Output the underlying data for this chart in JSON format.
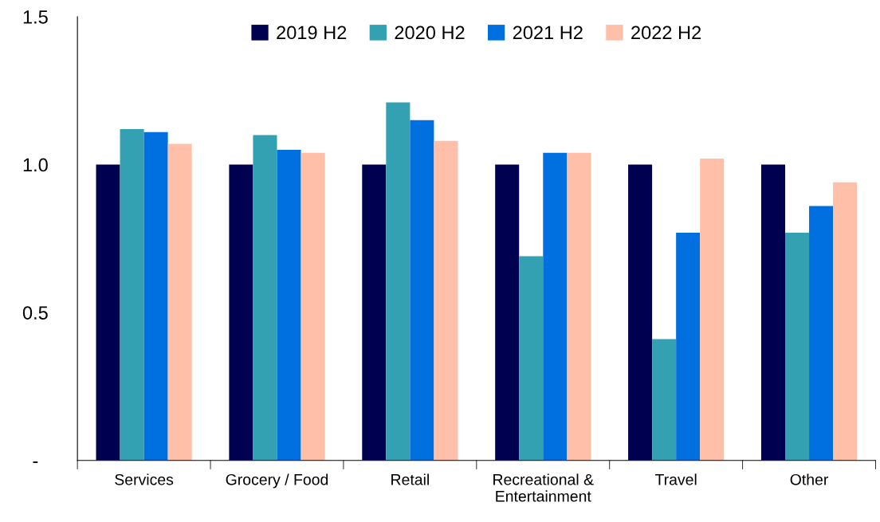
{
  "chart_data": {
    "type": "bar",
    "categories": [
      "Services",
      "Grocery / Food",
      "Retail",
      "Recreational &\nEntertainment",
      "Travel",
      "Other"
    ],
    "series": [
      {
        "name": "2019 H2",
        "color": "#000050",
        "values": [
          1.0,
          1.0,
          1.0,
          1.0,
          1.0,
          1.0
        ]
      },
      {
        "name": "2020 H2",
        "color": "#33a1b2",
        "values": [
          1.12,
          1.1,
          1.21,
          0.69,
          0.41,
          0.77
        ]
      },
      {
        "name": "2021 H2",
        "color": "#0070e0",
        "values": [
          1.11,
          1.05,
          1.15,
          1.04,
          0.77,
          0.86
        ]
      },
      {
        "name": "2022 H2",
        "color": "#ffbfa8",
        "values": [
          1.07,
          1.04,
          1.08,
          1.04,
          1.02,
          0.94
        ]
      }
    ],
    "ylim": [
      0,
      1.5
    ],
    "yticks": [
      {
        "value": 0,
        "label": "-"
      },
      0.5,
      {
        "value": 1.0,
        "label": "1.0"
      },
      1.5
    ],
    "legend": "top",
    "grid": false
  }
}
